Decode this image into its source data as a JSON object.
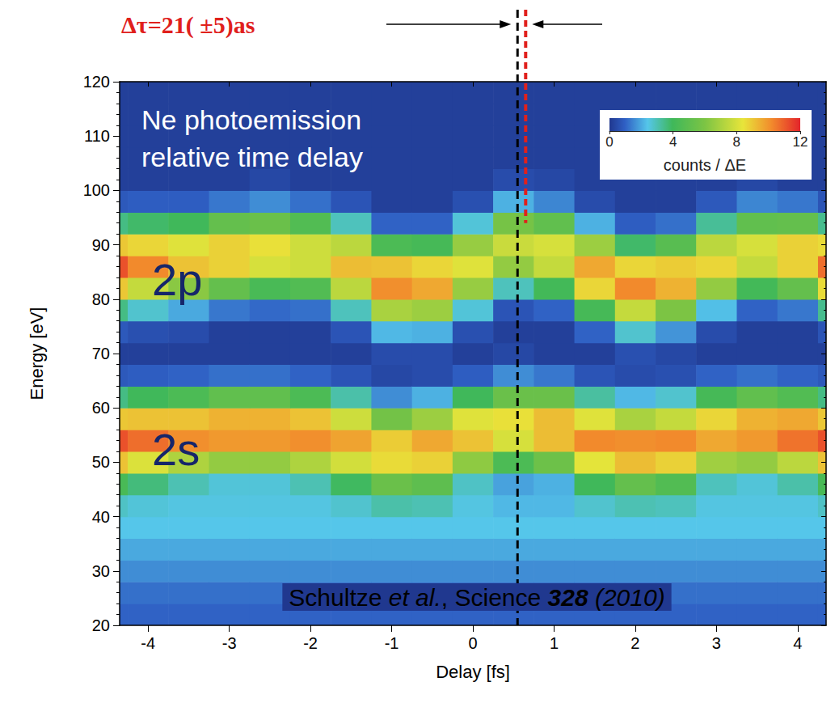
{
  "chart_data": {
    "type": "heatmap",
    "title": "Δτ=21( ±5)as",
    "heading": [
      "Ne photoemission",
      "relative time delay"
    ],
    "band_labels": [
      "2p",
      "2s"
    ],
    "citation": [
      "Schultze ",
      "et al.",
      ", Science ",
      "328",
      " (2010)"
    ],
    "x_label": "Delay [fs]",
    "y_label": "Energy [eV]",
    "xlim": [
      -4.35,
      4.35
    ],
    "xticks": [
      -4,
      -3,
      -2,
      -1,
      0,
      1,
      2,
      3,
      4
    ],
    "ylim": [
      20,
      120
    ],
    "yticks": [
      20,
      30,
      40,
      50,
      60,
      70,
      80,
      90,
      100,
      110,
      120
    ],
    "grid": false,
    "delay": [
      -4.5,
      -4,
      -3.5,
      -3,
      -2.5,
      -2,
      -1.5,
      -1,
      -0.5,
      0,
      0.5,
      1,
      1.5,
      2,
      2.5,
      3,
      3.5,
      4,
      4.5
    ],
    "energy": [
      22,
      26,
      30,
      34,
      38,
      42,
      46,
      50,
      54,
      58,
      62,
      66,
      70,
      74,
      78,
      82,
      86,
      90,
      94,
      98,
      102,
      106,
      110,
      114,
      118
    ],
    "counts": [
      [
        1.0,
        1.2,
        1.6,
        2.0,
        2.4,
        2.8,
        4.3,
        9.1,
        11.2,
        9.0,
        3.5,
        0.8,
        0.2,
        0.8,
        3.5,
        9.0,
        11.2,
        9.0,
        3.5,
        0.8,
        0.2,
        0.2,
        0.2,
        0.2,
        0.2
      ],
      [
        1.0,
        1.2,
        1.6,
        2.0,
        2.4,
        2.6,
        3.6,
        8.1,
        10.7,
        9.1,
        4.0,
        0.9,
        0.2,
        0.6,
        2.7,
        7.6,
        10.2,
        8.7,
        3.8,
        0.9,
        0.2,
        0.2,
        0.2,
        0.2,
        0.2
      ],
      [
        1.0,
        1.2,
        1.6,
        2.0,
        2.4,
        2.5,
        3.0,
        7.1,
        10.1,
        9.1,
        4.4,
        1.0,
        0.2,
        0.5,
        2.0,
        6.3,
        9.1,
        8.2,
        4.0,
        0.9,
        0.2,
        0.2,
        0.2,
        0.2,
        0.2
      ],
      [
        1.0,
        1.2,
        1.6,
        2.0,
        2.4,
        2.5,
        2.6,
        6.5,
        9.9,
        9.4,
        5.1,
        1.2,
        0.2,
        0.2,
        1.3,
        5.2,
        8.8,
        8.8,
        5.2,
        1.3,
        0.2,
        0.2,
        0.2,
        0.2,
        0.2
      ],
      [
        1.0,
        1.2,
        1.6,
        2.0,
        2.4,
        2.5,
        2.6,
        6.5,
        9.9,
        9.4,
        5.1,
        1.2,
        0.2,
        0.2,
        1.1,
        4.3,
        8.0,
        8.5,
        5.4,
        1.6,
        0.4,
        0.2,
        0.2,
        0.2,
        0.2
      ],
      [
        1.0,
        1.2,
        1.6,
        2.0,
        2.4,
        2.5,
        3.0,
        7.1,
        10.1,
        9.1,
        4.4,
        1.0,
        0.2,
        0.2,
        1.2,
        4.6,
        7.8,
        7.8,
        4.6,
        1.2,
        0.2,
        0.2,
        0.2,
        0.2,
        0.2
      ],
      [
        1.0,
        1.2,
        1.6,
        2.0,
        2.4,
        2.7,
        3.9,
        7.9,
        9.7,
        7.8,
        3.1,
        0.7,
        0.2,
        0.7,
        2.9,
        7.4,
        9.2,
        7.4,
        2.9,
        0.7,
        0.2,
        0.2,
        0.2,
        0.2,
        0.2
      ],
      [
        1.0,
        1.2,
        1.6,
        2.0,
        2.4,
        3.1,
        5.4,
        8.6,
        8.9,
        5.7,
        1.6,
        0.4,
        0.5,
        2.2,
        7.0,
        10.1,
        9.1,
        4.4,
        1.0,
        0.2,
        0.2,
        0.2,
        0.2,
        0.2,
        0.2
      ],
      [
        1.0,
        1.2,
        1.6,
        2.0,
        2.4,
        3.0,
        5.0,
        8.8,
        9.6,
        6.7,
        2.1,
        0.5,
        0.5,
        2.1,
        6.7,
        9.6,
        8.7,
        4.2,
        1.0,
        0.2,
        0.2,
        0.2,
        0.2,
        0.2,
        0.2
      ],
      [
        1.0,
        1.2,
        1.6,
        2.0,
        2.4,
        2.5,
        2.8,
        6.4,
        9.1,
        8.2,
        4.0,
        0.9,
        0.2,
        0.6,
        2.6,
        6.6,
        8.2,
        6.6,
        2.6,
        0.6,
        0.2,
        0.2,
        0.2,
        0.2,
        0.2
      ],
      [
        1.0,
        1.2,
        1.6,
        2.0,
        2.4,
        2.2,
        1.9,
        4.4,
        8.0,
        8.5,
        5.4,
        1.6,
        0.4,
        0.2,
        0.7,
        2.9,
        6.5,
        7.7,
        5.8,
        2.1,
        0.5,
        0.2,
        0.2,
        0.2,
        0.2
      ],
      [
        1.0,
        1.2,
        1.6,
        2.0,
        2.4,
        2.2,
        2.1,
        5.5,
        9.2,
        9.2,
        5.4,
        1.3,
        0.2,
        0.2,
        1.0,
        4.1,
        7.6,
        8.0,
        5.1,
        1.5,
        0.4,
        0.2,
        0.2,
        0.2,
        0.2
      ],
      [
        1.0,
        1.2,
        1.6,
        2.0,
        2.4,
        2.7,
        4.0,
        8.3,
        10.2,
        8.2,
        3.2,
        0.7,
        0.2,
        1.0,
        4.2,
        8.7,
        9.6,
        6.7,
        2.1,
        0.5,
        0.2,
        0.2,
        0.2,
        0.2,
        0.2
      ],
      [
        1.0,
        1.2,
        1.6,
        2.0,
        2.4,
        3.0,
        5.2,
        9.2,
        10.1,
        7.0,
        2.2,
        0.5,
        0.6,
        2.7,
        7.6,
        10.2,
        8.7,
        3.8,
        0.9,
        0.2,
        0.2,
        0.2,
        0.2,
        0.2,
        0.2
      ],
      [
        1.0,
        1.2,
        1.6,
        2.0,
        2.4,
        2.9,
        4.6,
        8.8,
        10.2,
        7.6,
        2.7,
        0.6,
        0.4,
        1.7,
        6.0,
        9.4,
        8.9,
        4.8,
        1.2,
        0.2,
        0.2,
        0.2,
        0.2,
        0.2,
        0.2
      ],
      [
        1.0,
        1.2,
        1.6,
        2.0,
        2.4,
        2.5,
        2.9,
        6.8,
        9.6,
        8.7,
        4.2,
        1.0,
        0.2,
        0.5,
        2.3,
        6.5,
        8.7,
        7.4,
        3.3,
        0.8,
        0.2,
        0.2,
        0.2,
        0.2,
        0.2
      ],
      [
        1.0,
        1.2,
        1.6,
        2.0,
        2.4,
        2.5,
        2.6,
        6.5,
        9.9,
        9.4,
        5.1,
        1.2,
        0.2,
        0.2,
        1.0,
        4.1,
        7.6,
        8.0,
        5.1,
        1.5,
        0.4,
        0.2,
        0.2,
        0.2,
        0.2
      ],
      [
        1.0,
        1.2,
        1.6,
        2.0,
        2.4,
        2.5,
        3.1,
        7.4,
        10.6,
        9.6,
        4.6,
        1.0,
        0.2,
        0.2,
        1.3,
        5.2,
        8.8,
        8.8,
        5.2,
        1.3,
        0.2,
        0.2,
        0.2,
        0.2,
        0.2
      ],
      [
        1.0,
        1.2,
        1.6,
        2.0,
        2.4,
        2.8,
        4.3,
        9.1,
        11.2,
        9.0,
        3.5,
        0.8,
        0.2,
        0.7,
        3.4,
        8.6,
        10.7,
        8.6,
        3.4,
        0.7,
        0.2,
        0.2,
        0.2,
        0.2,
        0.2
      ]
    ],
    "colorbar": {
      "label": "counts / ΔE",
      "range": [
        0,
        12
      ],
      "ticks": [
        0,
        4,
        8,
        12
      ]
    },
    "reference_lines": [
      {
        "delay": 0.55,
        "color": "#000000"
      },
      {
        "delay": 0.65,
        "color": "#e0201c",
        "energy_min": 94
      }
    ]
  }
}
